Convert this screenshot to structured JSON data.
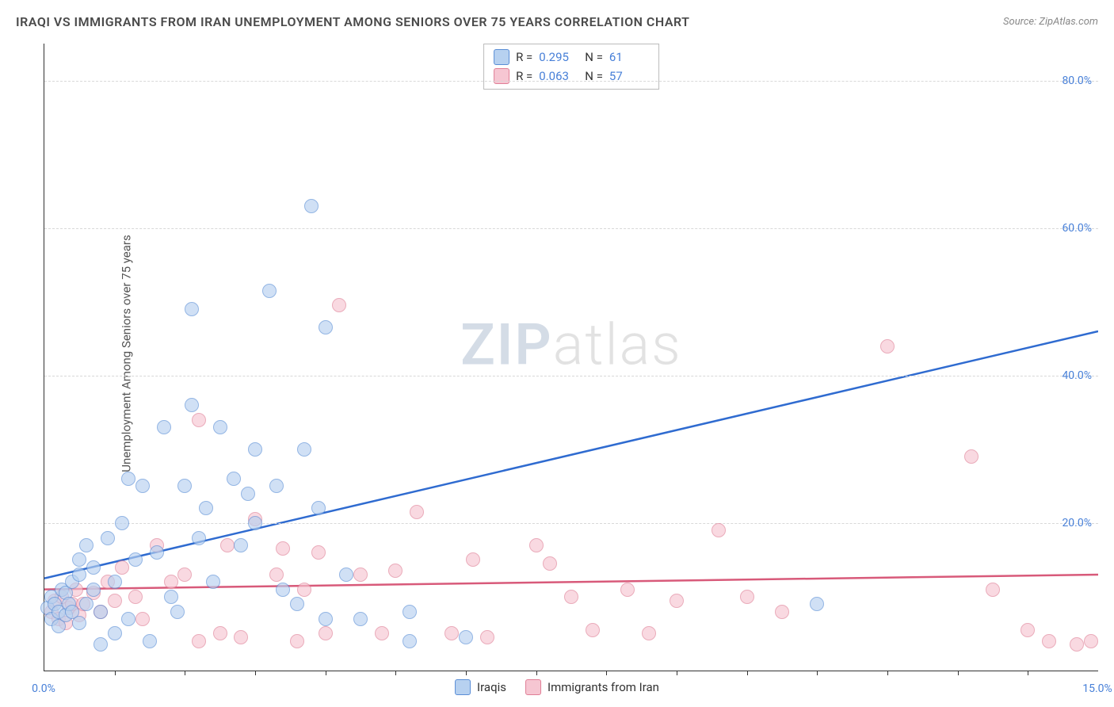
{
  "title": "IRAQI VS IMMIGRANTS FROM IRAN UNEMPLOYMENT AMONG SENIORS OVER 75 YEARS CORRELATION CHART",
  "source": "Source: ZipAtlas.com",
  "ylabel": "Unemployment Among Seniors over 75 years",
  "watermark_a": "ZIP",
  "watermark_b": "atlas",
  "chart": {
    "type": "scatter",
    "xlim": [
      0,
      15
    ],
    "ylim": [
      0,
      85
    ],
    "xtick_labels": [
      "0.0%",
      "15.0%"
    ],
    "xtick_positions": [
      0,
      15
    ],
    "ytick_labels": [
      "20.0%",
      "40.0%",
      "60.0%",
      "80.0%"
    ],
    "ytick_positions": [
      20,
      40,
      60,
      80
    ],
    "x_minor_ticks": [
      1,
      2,
      3,
      4,
      5,
      6,
      7,
      8,
      9,
      10,
      11,
      12,
      13,
      14
    ],
    "background_color": "#ffffff",
    "grid_color": "#d8d8d8",
    "axis_color": "#333333",
    "tick_label_color": "#4880d8",
    "marker_radius": 9,
    "marker_opacity": 0.65,
    "series": [
      {
        "name": "Iraqis",
        "fill_color": "#b7d1f0",
        "stroke_color": "#5a8ed6",
        "line_color": "#2f6bd0",
        "R": "0.295",
        "N": "61",
        "trend_y_at_x0": 12.5,
        "trend_y_at_xmax": 46.0,
        "points": [
          [
            0.05,
            8.5
          ],
          [
            0.1,
            7
          ],
          [
            0.1,
            10
          ],
          [
            0.15,
            9
          ],
          [
            0.2,
            6
          ],
          [
            0.2,
            8
          ],
          [
            0.25,
            11
          ],
          [
            0.3,
            7.5
          ],
          [
            0.3,
            10.5
          ],
          [
            0.35,
            9
          ],
          [
            0.4,
            8
          ],
          [
            0.4,
            12
          ],
          [
            0.5,
            6.5
          ],
          [
            0.5,
            13
          ],
          [
            0.5,
            15
          ],
          [
            0.6,
            9
          ],
          [
            0.6,
            17
          ],
          [
            0.7,
            11
          ],
          [
            0.7,
            14
          ],
          [
            0.8,
            8
          ],
          [
            0.8,
            3.5
          ],
          [
            0.9,
            18
          ],
          [
            1.0,
            5
          ],
          [
            1.0,
            12
          ],
          [
            1.1,
            20
          ],
          [
            1.2,
            7
          ],
          [
            1.2,
            26
          ],
          [
            1.3,
            15
          ],
          [
            1.4,
            25
          ],
          [
            1.5,
            4
          ],
          [
            1.6,
            16
          ],
          [
            1.7,
            33
          ],
          [
            1.8,
            10
          ],
          [
            1.9,
            8
          ],
          [
            2.0,
            25
          ],
          [
            2.1,
            36
          ],
          [
            2.1,
            49
          ],
          [
            2.2,
            18
          ],
          [
            2.3,
            22
          ],
          [
            2.4,
            12
          ],
          [
            2.5,
            33
          ],
          [
            2.7,
            26
          ],
          [
            2.8,
            17
          ],
          [
            2.9,
            24
          ],
          [
            3.0,
            30
          ],
          [
            3.0,
            20
          ],
          [
            3.2,
            51.5
          ],
          [
            3.3,
            25
          ],
          [
            3.4,
            11
          ],
          [
            3.6,
            9
          ],
          [
            3.7,
            30
          ],
          [
            3.8,
            63
          ],
          [
            3.9,
            22
          ],
          [
            4.0,
            7
          ],
          [
            4.0,
            46.5
          ],
          [
            4.3,
            13
          ],
          [
            4.5,
            7
          ],
          [
            5.2,
            8
          ],
          [
            5.2,
            4
          ],
          [
            6.0,
            4.5
          ],
          [
            11.0,
            9
          ]
        ]
      },
      {
        "name": "Immigrants from Iran",
        "fill_color": "#f6c6d2",
        "stroke_color": "#e07f96",
        "line_color": "#d85a7a",
        "R": "0.063",
        "N": "57",
        "trend_y_at_x0": 11.0,
        "trend_y_at_xmax": 13.0,
        "points": [
          [
            0.1,
            8
          ],
          [
            0.15,
            9.5
          ],
          [
            0.2,
            7
          ],
          [
            0.25,
            10
          ],
          [
            0.3,
            6.5
          ],
          [
            0.35,
            8.5
          ],
          [
            0.4,
            9
          ],
          [
            0.45,
            11
          ],
          [
            0.5,
            7.5
          ],
          [
            0.55,
            9
          ],
          [
            0.7,
            10.5
          ],
          [
            0.8,
            8
          ],
          [
            0.9,
            12
          ],
          [
            1.0,
            9.5
          ],
          [
            1.1,
            14
          ],
          [
            1.3,
            10
          ],
          [
            1.4,
            7
          ],
          [
            1.6,
            17
          ],
          [
            1.8,
            12
          ],
          [
            2.0,
            13
          ],
          [
            2.2,
            4
          ],
          [
            2.2,
            34
          ],
          [
            2.5,
            5
          ],
          [
            2.6,
            17
          ],
          [
            2.8,
            4.5
          ],
          [
            3.0,
            20.5
          ],
          [
            3.3,
            13
          ],
          [
            3.4,
            16.5
          ],
          [
            3.6,
            4
          ],
          [
            3.7,
            11
          ],
          [
            3.9,
            16
          ],
          [
            4.0,
            5
          ],
          [
            4.2,
            49.5
          ],
          [
            4.5,
            13
          ],
          [
            4.8,
            5
          ],
          [
            5.0,
            13.5
          ],
          [
            5.3,
            21.5
          ],
          [
            5.8,
            5
          ],
          [
            6.1,
            15
          ],
          [
            6.3,
            4.5
          ],
          [
            7.0,
            17
          ],
          [
            7.2,
            14.5
          ],
          [
            7.5,
            10
          ],
          [
            7.8,
            5.5
          ],
          [
            8.3,
            11
          ],
          [
            8.6,
            5
          ],
          [
            9.0,
            9.5
          ],
          [
            9.6,
            19
          ],
          [
            10.0,
            10
          ],
          [
            10.5,
            8
          ],
          [
            12.0,
            44
          ],
          [
            13.2,
            29
          ],
          [
            13.5,
            11
          ],
          [
            14.0,
            5.5
          ],
          [
            14.3,
            4
          ],
          [
            14.7,
            3.5
          ],
          [
            14.9,
            4
          ]
        ]
      }
    ]
  }
}
